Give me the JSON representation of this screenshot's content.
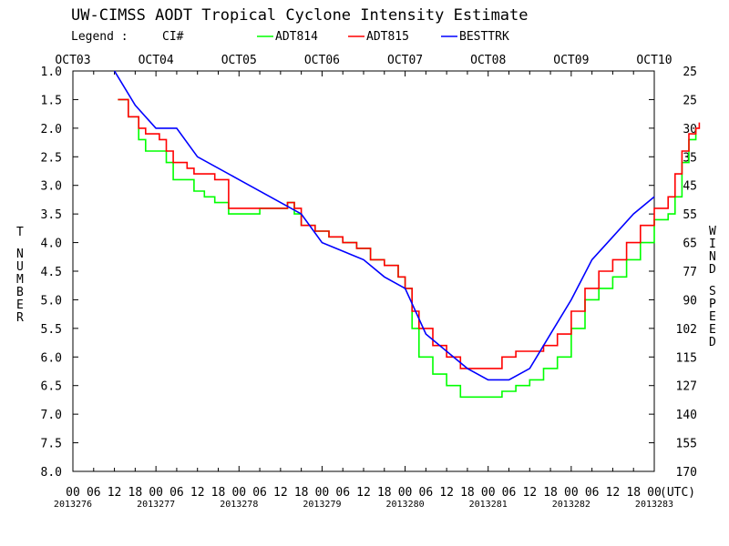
{
  "chart_data": {
    "type": "line",
    "title": "UW-CIMSS AODT Tropical Cyclone Intensity Estimate",
    "legend": {
      "label": "Legend :",
      "ci": "CI#",
      "entries": [
        {
          "name": "ADT814",
          "color": "#00ff00"
        },
        {
          "name": "ADT815",
          "color": "#ff0000"
        },
        {
          "name": "BESTTRK",
          "color": "#0000ff"
        }
      ]
    },
    "xlabel": "(UTC)",
    "ylabel_left": "T NUMBER",
    "ylabel_right": "WIND SPEED",
    "xlim_hours": [
      0,
      168
    ],
    "ylim": [
      1.0,
      8.0
    ],
    "date_labels_top": [
      "OCT03",
      "OCT04",
      "OCT05",
      "OCT06",
      "OCT07",
      "OCT08",
      "OCT09",
      "OCT10"
    ],
    "julian_labels_bottom": [
      "2013276",
      "2013277",
      "2013278",
      "2013279",
      "2013280",
      "2013281",
      "2013282",
      "2013283"
    ],
    "hour_ticks": [
      "00",
      "06",
      "12",
      "18"
    ],
    "y_ticks": [
      "1.0",
      "1.5",
      "2.0",
      "2.5",
      "3.0",
      "3.5",
      "4.0",
      "4.5",
      "5.0",
      "5.5",
      "6.0",
      "6.5",
      "7.0",
      "7.5",
      "8.0"
    ],
    "wind_ticks": [
      "25",
      "25",
      "30",
      "35",
      "45",
      "55",
      "65",
      "77",
      "90",
      "102",
      "115",
      "127",
      "140",
      "155",
      "170"
    ],
    "series": [
      {
        "name": "BESTTRK",
        "color": "#0000ff",
        "points": [
          [
            12,
            1.0
          ],
          [
            18,
            1.6
          ],
          [
            24,
            2.0
          ],
          [
            30,
            2.0
          ],
          [
            36,
            2.5
          ],
          [
            48,
            2.9
          ],
          [
            60,
            3.3
          ],
          [
            66,
            3.5
          ],
          [
            72,
            4.0
          ],
          [
            84,
            4.3
          ],
          [
            90,
            4.6
          ],
          [
            96,
            4.8
          ],
          [
            102,
            5.6
          ],
          [
            108,
            5.9
          ],
          [
            114,
            6.2
          ],
          [
            120,
            6.4
          ],
          [
            126,
            6.4
          ],
          [
            132,
            6.2
          ],
          [
            138,
            5.6
          ],
          [
            144,
            5.0
          ],
          [
            150,
            4.3
          ],
          [
            156,
            3.9
          ],
          [
            162,
            3.5
          ],
          [
            168,
            3.2
          ]
        ]
      },
      {
        "name": "ADT814",
        "color": "#00ff00",
        "points": [
          [
            13,
            1.5
          ],
          [
            16,
            1.8
          ],
          [
            19,
            2.2
          ],
          [
            21,
            2.4
          ],
          [
            25,
            2.4
          ],
          [
            27,
            2.6
          ],
          [
            29,
            2.9
          ],
          [
            33,
            2.9
          ],
          [
            35,
            3.1
          ],
          [
            38,
            3.2
          ],
          [
            41,
            3.3
          ],
          [
            45,
            3.5
          ],
          [
            51,
            3.5
          ],
          [
            54,
            3.4
          ],
          [
            59,
            3.4
          ],
          [
            62,
            3.3
          ],
          [
            64,
            3.5
          ],
          [
            66,
            3.7
          ],
          [
            70,
            3.8
          ],
          [
            74,
            3.9
          ],
          [
            78,
            4.0
          ],
          [
            82,
            4.1
          ],
          [
            86,
            4.3
          ],
          [
            90,
            4.4
          ],
          [
            94,
            4.6
          ],
          [
            96,
            4.8
          ],
          [
            98,
            5.5
          ],
          [
            100,
            6.0
          ],
          [
            104,
            6.3
          ],
          [
            108,
            6.5
          ],
          [
            112,
            6.7
          ],
          [
            120,
            6.7
          ],
          [
            124,
            6.6
          ],
          [
            128,
            6.5
          ],
          [
            132,
            6.4
          ],
          [
            136,
            6.2
          ],
          [
            140,
            6.0
          ],
          [
            144,
            5.5
          ],
          [
            148,
            5.0
          ],
          [
            152,
            4.8
          ],
          [
            156,
            4.6
          ],
          [
            160,
            4.3
          ],
          [
            164,
            4.0
          ],
          [
            168,
            3.6
          ],
          [
            172,
            3.5
          ],
          [
            174,
            3.2
          ],
          [
            176,
            2.6
          ],
          [
            178,
            2.2
          ],
          [
            180,
            2.0
          ]
        ]
      },
      {
        "name": "ADT815",
        "color": "#ff0000",
        "points": [
          [
            13,
            1.5
          ],
          [
            16,
            1.8
          ],
          [
            19,
            2.0
          ],
          [
            21,
            2.1
          ],
          [
            25,
            2.2
          ],
          [
            27,
            2.4
          ],
          [
            29,
            2.6
          ],
          [
            33,
            2.7
          ],
          [
            35,
            2.8
          ],
          [
            38,
            2.8
          ],
          [
            41,
            2.9
          ],
          [
            45,
            3.4
          ],
          [
            51,
            3.4
          ],
          [
            54,
            3.4
          ],
          [
            59,
            3.4
          ],
          [
            62,
            3.3
          ],
          [
            64,
            3.4
          ],
          [
            66,
            3.7
          ],
          [
            70,
            3.8
          ],
          [
            74,
            3.9
          ],
          [
            78,
            4.0
          ],
          [
            82,
            4.1
          ],
          [
            86,
            4.3
          ],
          [
            90,
            4.4
          ],
          [
            94,
            4.6
          ],
          [
            96,
            4.8
          ],
          [
            98,
            5.2
          ],
          [
            100,
            5.5
          ],
          [
            104,
            5.8
          ],
          [
            108,
            6.0
          ],
          [
            112,
            6.2
          ],
          [
            120,
            6.2
          ],
          [
            124,
            6.0
          ],
          [
            128,
            5.9
          ],
          [
            132,
            5.9
          ],
          [
            136,
            5.8
          ],
          [
            140,
            5.6
          ],
          [
            144,
            5.2
          ],
          [
            148,
            4.8
          ],
          [
            152,
            4.5
          ],
          [
            156,
            4.3
          ],
          [
            160,
            4.0
          ],
          [
            164,
            3.7
          ],
          [
            168,
            3.4
          ],
          [
            172,
            3.2
          ],
          [
            174,
            2.8
          ],
          [
            176,
            2.4
          ],
          [
            178,
            2.1
          ],
          [
            180,
            2.0
          ],
          [
            181,
            1.9
          ]
        ]
      }
    ]
  }
}
